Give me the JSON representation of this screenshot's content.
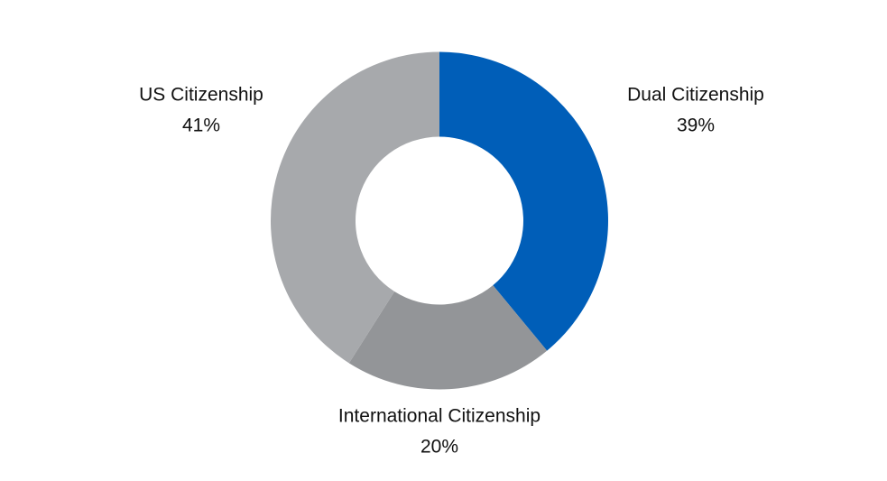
{
  "chart_data": {
    "type": "donut",
    "categories": [
      "Dual Citizenship",
      "International Citizenship",
      "US Citizenship"
    ],
    "values": [
      39,
      20,
      41
    ],
    "value_labels": [
      "39%",
      "20%",
      "41%"
    ],
    "colors": [
      "#005eb8",
      "#939598",
      "#a7a9ac"
    ]
  }
}
